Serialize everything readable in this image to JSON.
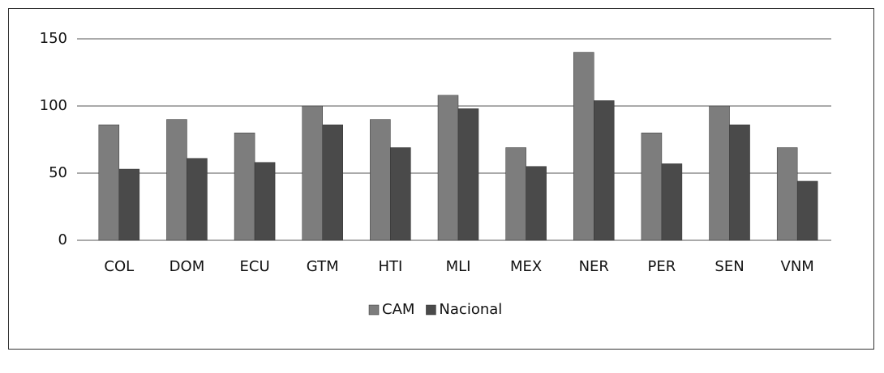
{
  "chart_data": {
    "type": "bar",
    "categories": [
      "COL",
      "DOM",
      "ECU",
      "GTM",
      "HTI",
      "MLI",
      "MEX",
      "NER",
      "PER",
      "SEN",
      "VNM"
    ],
    "series": [
      {
        "name": "CAM",
        "color": "#7d7d7d",
        "values": [
          86,
          90,
          80,
          100,
          90,
          108,
          69,
          140,
          80,
          100,
          69
        ]
      },
      {
        "name": "Nacional",
        "color": "#4a4a4a",
        "values": [
          53,
          61,
          58,
          86,
          69,
          98,
          55,
          104,
          57,
          86,
          44
        ]
      }
    ],
    "ylim": [
      0,
      150
    ],
    "yticks": [
      0,
      50,
      100,
      150
    ],
    "grid": true,
    "legend": "bottom"
  }
}
